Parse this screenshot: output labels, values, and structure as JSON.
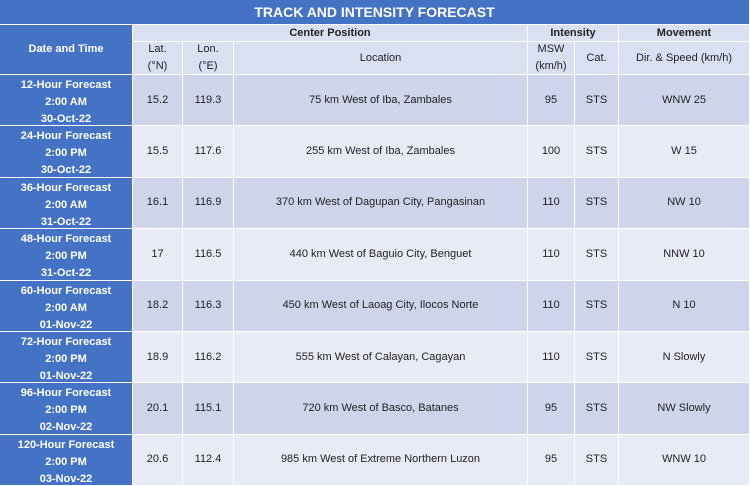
{
  "title": "TRACK AND INTENSITY FORECAST",
  "header": {
    "date_time": "Date and Time",
    "groups": [
      "Center Position",
      "Intensity",
      "Movement"
    ],
    "columns": [
      [
        "Lat.",
        "(°N)"
      ],
      [
        "Lon.",
        "(°E)"
      ],
      [
        "Location"
      ],
      [
        "MSW",
        "(km/h)"
      ],
      [
        "Cat."
      ],
      [
        "Dir. & Speed (km/h)"
      ]
    ]
  },
  "rows": [
    {
      "forecast": "12-Hour Forecast",
      "time": "2:00 AM",
      "date": "30-Oct-22",
      "cells": [
        15.2,
        119.3,
        "75 km West of Iba, Zambales",
        95,
        "STS",
        "WNW 25"
      ]
    },
    {
      "forecast": "24-Hour Forecast",
      "time": "2:00 PM",
      "date": "30-Oct-22",
      "cells": [
        15.5,
        117.6,
        "255 km West of Iba, Zambales",
        100,
        "STS",
        "W 15"
      ]
    },
    {
      "forecast": "36-Hour Forecast",
      "time": "2:00 AM",
      "date": "31-Oct-22",
      "cells": [
        16.1,
        116.9,
        "370 km West of Dagupan City, Pangasinan",
        110,
        "STS",
        "NW 10"
      ]
    },
    {
      "forecast": "48-Hour Forecast",
      "time": "2:00 PM",
      "date": "31-Oct-22",
      "cells": [
        17,
        116.5,
        "440 km West of Baguio City, Benguet",
        110,
        "STS",
        "NNW 10"
      ]
    },
    {
      "forecast": "60-Hour Forecast",
      "time": "2:00 AM",
      "date": "01-Nov-22",
      "cells": [
        18.2,
        116.3,
        "450 km West of Laoag City, Ilocos Norte",
        110,
        "STS",
        "N 10"
      ]
    },
    {
      "forecast": "72-Hour Forecast",
      "time": "2:00 PM",
      "date": "01-Nov-22",
      "cells": [
        18.9,
        116.2,
        "555 km West of Calayan, Cagayan",
        110,
        "STS",
        "N Slowly"
      ]
    },
    {
      "forecast": "96-Hour Forecast",
      "time": "2:00 PM",
      "date": "02-Nov-22",
      "cells": [
        20.1,
        115.1,
        "720 km West of Basco, Batanes",
        95,
        "STS",
        "NW Slowly"
      ]
    },
    {
      "forecast": "120-Hour Forecast",
      "time": "2:00 PM",
      "date": "03-Nov-22",
      "cells": [
        20.6,
        112.4,
        "985 km West of Extreme Northern Luzon",
        95,
        "STS",
        "WNW 10"
      ]
    }
  ]
}
